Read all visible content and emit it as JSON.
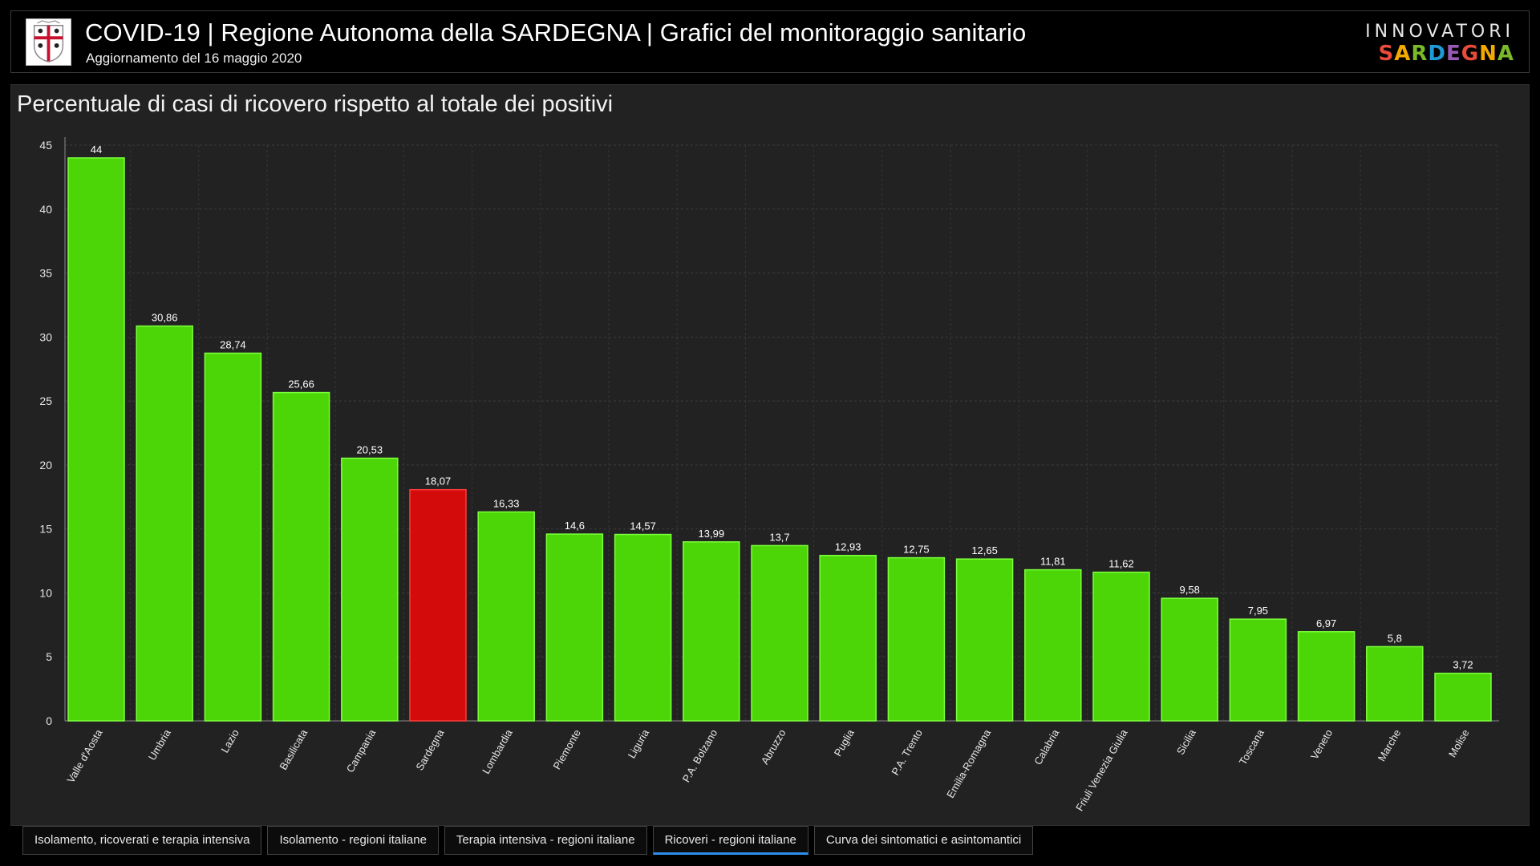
{
  "header": {
    "title": "COVID-19 | Regione Autonoma della SARDEGNA | Grafici del monitoraggio sanitario",
    "subtitle": "Aggiornamento del 16 maggio 2020",
    "emblem_icon": "sardinia-coat-of-arms-icon",
    "brand": {
      "top": "INNOVATORI",
      "bottom": "SARDEGNA",
      "bottom_colors": [
        "#e94b3c",
        "#f2a900",
        "#7ab929",
        "#1f9ad6",
        "#9b59b6",
        "#e94b3c",
        "#f2a900",
        "#7ab929"
      ]
    }
  },
  "panel": {
    "title": "Percentuale di casi di ricovero rispetto al totale dei positivi"
  },
  "chart_data": {
    "type": "bar",
    "title": "Percentuale di casi di ricovero rispetto al totale dei positivi",
    "xlabel": "",
    "ylabel": "",
    "ylim": [
      0,
      45
    ],
    "yticks": [
      0,
      5,
      10,
      15,
      20,
      25,
      30,
      35,
      40,
      45
    ],
    "grid": true,
    "categories": [
      "Valle d'Aosta",
      "Umbria",
      "Lazio",
      "Basilicata",
      "Campania",
      "Sardegna",
      "Lombardia",
      "Piemonte",
      "Liguria",
      "P.A. Bolzano",
      "Abruzzo",
      "Puglia",
      "P.A. Trento",
      "Emilia-Romagna",
      "Calabria",
      "Friuli Venezia Giulia",
      "Sicilia",
      "Toscana",
      "Veneto",
      "Marche",
      "Molise"
    ],
    "values": [
      44,
      30.86,
      28.74,
      25.66,
      20.53,
      18.07,
      16.33,
      14.6,
      14.57,
      13.99,
      13.7,
      12.93,
      12.75,
      12.65,
      11.81,
      11.62,
      9.58,
      7.95,
      6.97,
      5.8,
      3.72
    ],
    "data_labels": [
      "44",
      "30,86",
      "28,74",
      "25,66",
      "20,53",
      "18,07",
      "16,33",
      "14,6",
      "14,57",
      "13,99",
      "13,7",
      "12,93",
      "12,75",
      "12,65",
      "11,81",
      "11,62",
      "9,58",
      "7,95",
      "6,97",
      "5,8",
      "3,72"
    ],
    "colors": {
      "default": "#4cd608",
      "default_border": "#7cff3c",
      "highlight": "#d40b0b",
      "highlight_border": "#ff3b3b",
      "highlight_category": "Sardegna"
    }
  },
  "tabs": [
    {
      "label": "Isolamento, ricoverati e terapia intensiva",
      "active": false
    },
    {
      "label": "Isolamento - regioni italiane",
      "active": false
    },
    {
      "label": "Terapia intensiva - regioni italiane",
      "active": false
    },
    {
      "label": "Ricoveri - regioni italiane",
      "active": true
    },
    {
      "label": "Curva dei sintomatici e asintomantici",
      "active": false
    }
  ]
}
